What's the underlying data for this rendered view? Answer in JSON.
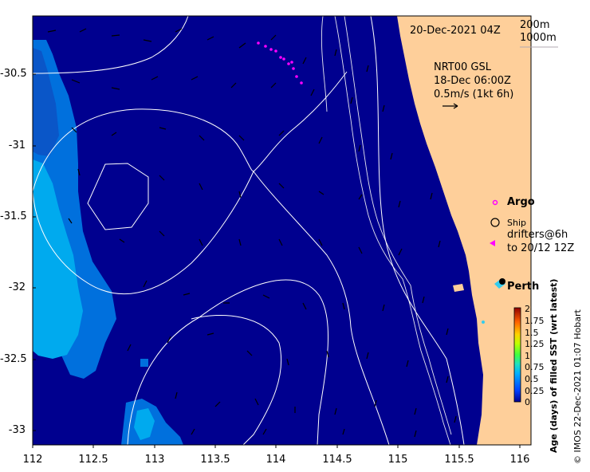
{
  "map": {
    "date_label": "20-Dec-2021 04Z",
    "contour_label_1": "200m",
    "contour_label_2": "1000m",
    "current_model": "NRT00 GSL",
    "current_time": "18-Dec 06:00Z",
    "current_scale": "0.5m/s (1kt 6h)",
    "y_ticks": [
      "-30.5",
      "-31",
      "-31.5",
      "-32",
      "-32.5",
      "-33"
    ],
    "x_ticks": [
      "112",
      "112.5",
      "113",
      "113.5",
      "114",
      "114.5",
      "115",
      "115.5",
      "116"
    ],
    "colors": {
      "ocean": "#00008f",
      "land": "#fecf9a",
      "sst_light": "#00aaee",
      "sst_mid": "#0070dd"
    }
  },
  "legend": {
    "argo": "Argo",
    "ship": "Ship",
    "drifters_line1": "drifters@6h",
    "drifters_line2": "to 20/12 12Z",
    "city": "Perth"
  },
  "colorbar": {
    "title": "Age (days) of filled SST (wrt latest)",
    "ticks": [
      "2",
      "1.75",
      "1.5",
      "1.25",
      "1",
      "0.75",
      "0.5",
      "0.25",
      "0"
    ]
  },
  "credit": "© IMOS 22-Dec-2021 01:07 Hobart"
}
